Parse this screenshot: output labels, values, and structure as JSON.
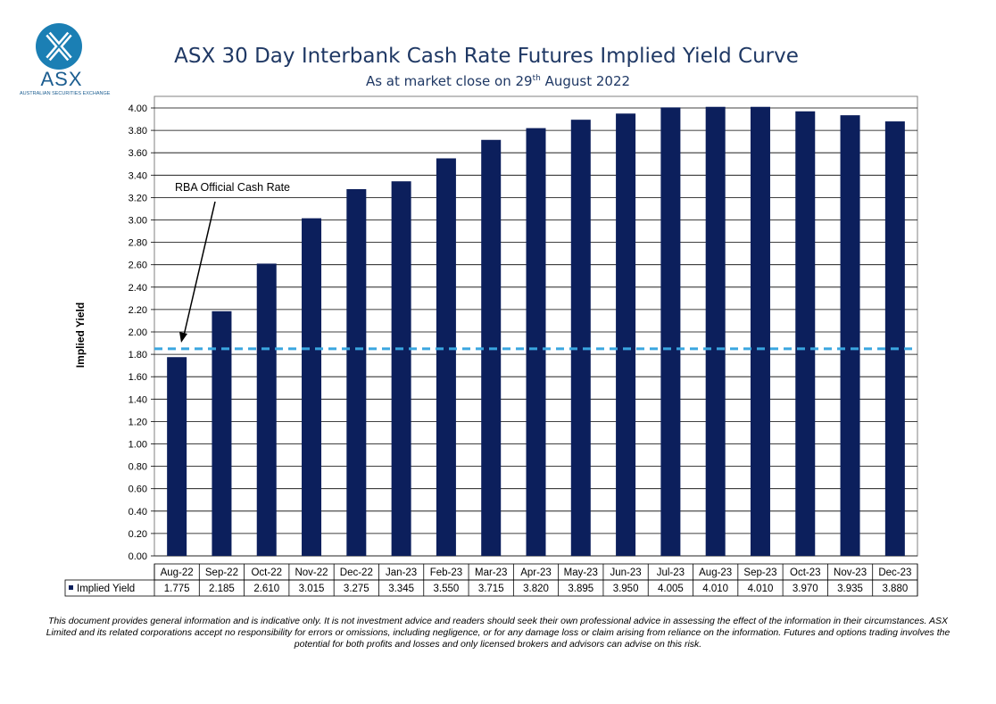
{
  "header": {
    "logo_text": "ASX",
    "logo_subtext": "AUSTRALIAN SECURITIES EXCHANGE",
    "title": "ASX 30 Day Interbank Cash Rate Futures Implied Yield Curve",
    "subtitle_prefix": "As at market close on 29",
    "subtitle_sup": "th",
    "subtitle_suffix": " August 2022"
  },
  "chart_data": {
    "type": "bar",
    "title": "ASX 30 Day Interbank Cash Rate Futures Implied Yield Curve",
    "ylabel": "Implied Yield",
    "xlabel": "",
    "ylim": [
      0,
      4.0
    ],
    "ytick_step": 0.2,
    "yticks": [
      "0.00",
      "0.20",
      "0.40",
      "0.60",
      "0.80",
      "1.00",
      "1.20",
      "1.40",
      "1.60",
      "1.80",
      "2.00",
      "2.20",
      "2.40",
      "2.60",
      "2.80",
      "3.00",
      "3.20",
      "3.40",
      "3.60",
      "3.80",
      "4.00"
    ],
    "grid": true,
    "categories": [
      "Aug-22",
      "Sep-22",
      "Oct-22",
      "Nov-22",
      "Dec-22",
      "Jan-23",
      "Feb-23",
      "Mar-23",
      "Apr-23",
      "May-23",
      "Jun-23",
      "Jul-23",
      "Aug-23",
      "Sep-23",
      "Oct-23",
      "Nov-23",
      "Dec-23"
    ],
    "series": [
      {
        "name": "Implied Yield",
        "color": "#0c1f5c",
        "values": [
          1.775,
          2.185,
          2.61,
          3.015,
          3.275,
          3.345,
          3.55,
          3.715,
          3.82,
          3.895,
          3.95,
          4.005,
          4.01,
          4.01,
          3.97,
          3.935,
          3.88
        ],
        "value_labels": [
          "1.775",
          "2.185",
          "2.610",
          "3.015",
          "3.275",
          "3.345",
          "3.550",
          "3.715",
          "3.820",
          "3.895",
          "3.950",
          "4.005",
          "4.010",
          "4.010",
          "3.970",
          "3.935",
          "3.880"
        ]
      }
    ],
    "reference_line": {
      "label": "RBA Official Cash Rate",
      "value": 1.85,
      "color": "#3aa6e0"
    },
    "data_table": true
  },
  "disclaimer": "This document provides general information and is indicative only. It is not investment advice and readers should seek their own professional advice in assessing the effect of the information in their circumstances. ASX Limited and its related corporations accept no responsibility for errors or omissions, including negligence, or for any damage loss or claim arising from reliance on the information. Futures and options trading involves the potential for both profits and losses and only licensed brokers and advisors can advise on this risk."
}
